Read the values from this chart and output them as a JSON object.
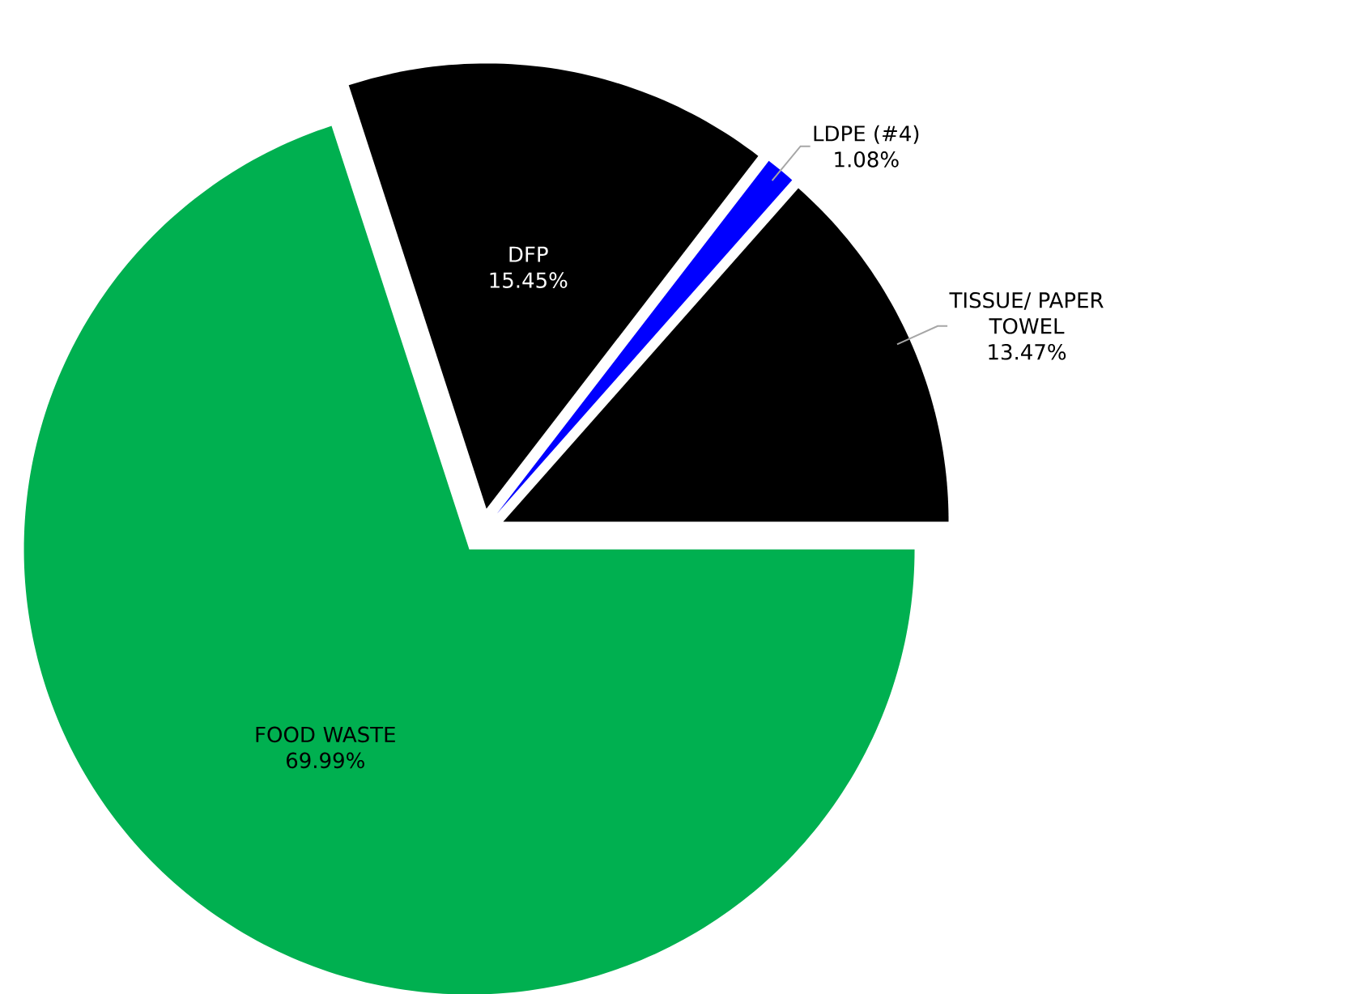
{
  "chart_data": {
    "type": "pie",
    "categories": [
      "FOOD WASTE",
      "DFP",
      "LDPE (#4)",
      "TISSUE/ PAPER TOWEL"
    ],
    "values": [
      69.99,
      15.45,
      1.08,
      13.47
    ],
    "colors": [
      "#00b050",
      "#000000",
      "#0000ff",
      "#000000"
    ],
    "value_labels": [
      "69.99%",
      "15.45%",
      "1.08%",
      "13.47%"
    ]
  }
}
